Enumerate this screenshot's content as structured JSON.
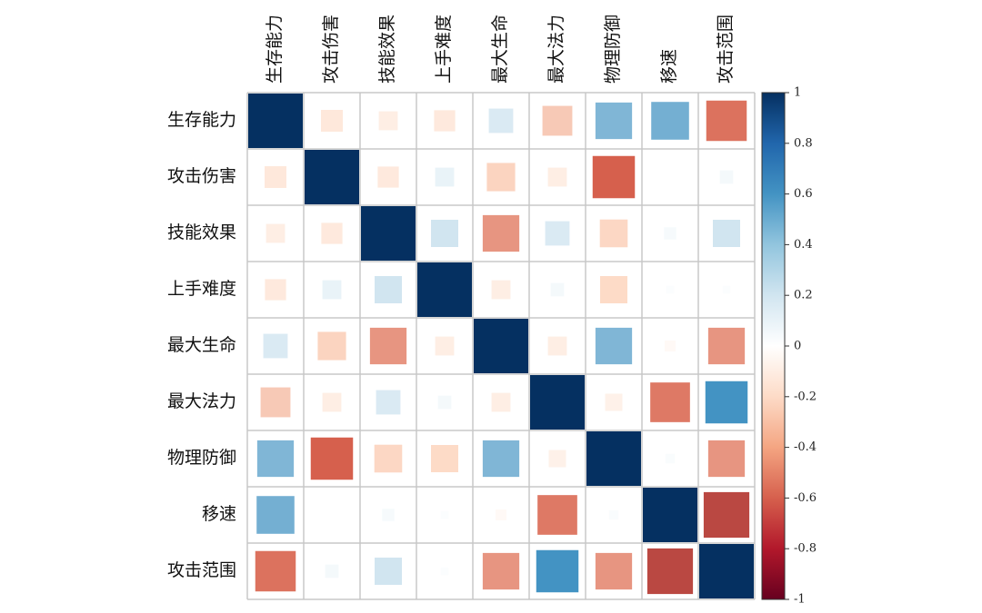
{
  "chart_data": {
    "type": "heatmap",
    "style": "correlation-matrix squares",
    "variables": [
      "生存能力",
      "攻击伤害",
      "技能效果",
      "上手难度",
      "最大生命",
      "最大法力",
      "物理防御",
      "移速",
      "攻击范围"
    ],
    "matrix": [
      [
        1.0,
        -0.16,
        -0.12,
        -0.15,
        0.2,
        -0.3,
        0.45,
        0.48,
        -0.55
      ],
      [
        -0.16,
        1.0,
        -0.15,
        0.12,
        -0.27,
        -0.12,
        -0.6,
        0.0,
        0.06
      ],
      [
        -0.12,
        -0.15,
        1.0,
        0.25,
        -0.45,
        0.2,
        -0.26,
        0.05,
        0.25
      ],
      [
        -0.15,
        0.12,
        0.25,
        1.0,
        -0.12,
        0.06,
        -0.25,
        0.02,
        0.02
      ],
      [
        0.2,
        -0.27,
        -0.45,
        -0.12,
        1.0,
        -0.12,
        0.45,
        -0.04,
        -0.45
      ],
      [
        -0.3,
        -0.12,
        0.2,
        0.06,
        -0.12,
        1.0,
        -0.1,
        -0.53,
        0.6
      ],
      [
        0.45,
        -0.6,
        -0.26,
        -0.25,
        0.45,
        -0.1,
        1.0,
        0.03,
        -0.45
      ],
      [
        0.48,
        0.0,
        0.05,
        0.02,
        -0.04,
        -0.53,
        0.03,
        1.0,
        -0.7
      ],
      [
        -0.55,
        0.06,
        0.25,
        0.02,
        -0.45,
        0.6,
        -0.45,
        -0.7,
        1.0
      ]
    ],
    "colorbar": {
      "min": -1,
      "max": 1,
      "ticks": [
        "1",
        "0.8",
        "0.6",
        "0.4",
        "0.2",
        "0",
        "-0.2",
        "-0.4",
        "-0.6",
        "-0.8",
        "-1"
      ]
    },
    "colors": {
      "neg_strong": "#67001f",
      "neg_mid": "#d6604d",
      "neg_light": "#fddbc7",
      "zero": "#ffffff",
      "pos_light": "#d1e5f0",
      "pos_mid": "#4393c3",
      "pos_strong": "#053061"
    }
  }
}
